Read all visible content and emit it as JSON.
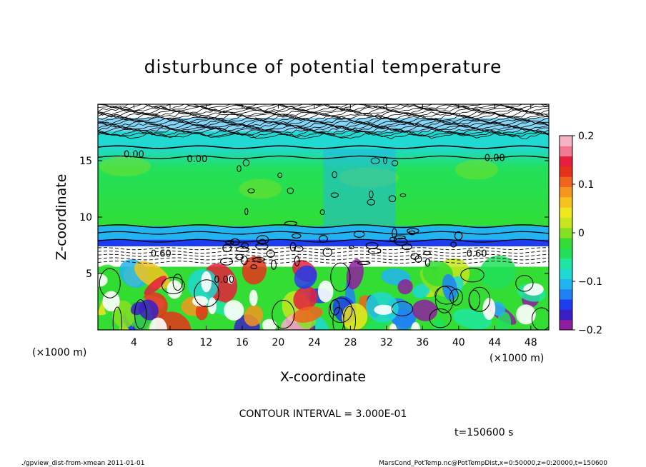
{
  "chart_data": {
    "type": "heatmap",
    "title": "disturbunce of potential temperature",
    "xlabel": "X-coordinate",
    "ylabel": "Z-coordinate",
    "x_unit": "(×1000 m)",
    "y_unit": "(×1000 m)",
    "xlim": [
      0,
      50
    ],
    "ylim": [
      0,
      20
    ],
    "x_ticks": [
      4,
      8,
      12,
      16,
      20,
      24,
      28,
      32,
      36,
      40,
      44,
      48
    ],
    "y_ticks": [
      5,
      10,
      15
    ],
    "colorbar": {
      "min": -0.2,
      "max": 0.2,
      "ticks": [
        "0.2",
        "0.1",
        "0",
        "−0.1",
        "−0.2"
      ],
      "tick_values": [
        0.2,
        0.1,
        0,
        -0.1,
        -0.2
      ],
      "colors": [
        "#8e1ea0",
        "#3b1fc4",
        "#1e3cf0",
        "#1e82f5",
        "#22b4f0",
        "#1fd9d2",
        "#1ee6a0",
        "#22e05a",
        "#33dd33",
        "#86e022",
        "#c8e61e",
        "#f0e61e",
        "#f5c31e",
        "#f5961e",
        "#f0641e",
        "#e63219",
        "#e61e3c",
        "#f07890",
        "#f5b4c3"
      ]
    },
    "contour_labels": [
      {
        "text": "0.00",
        "x": 4,
        "z": 15.6
      },
      {
        "text": "0.00",
        "x": 11,
        "z": 15.2
      },
      {
        "text": "0.00",
        "x": 44,
        "z": 15.3
      },
      {
        "text": "0.60",
        "x": 7,
        "z": 6.8
      },
      {
        "text": "0.60",
        "x": 42,
        "z": 6.8
      },
      {
        "text": "0.00",
        "x": 14,
        "z": 4.5
      }
    ],
    "contour_interval": "CONTOUR INTERVAL = 3.000E-01",
    "time_label": "t=150600 s"
  },
  "footer": {
    "left": "./gpview_dist-from-xmean  2011-01-01",
    "right": "MarsCond_PotTemp.nc@PotTempDist,x=0:50000,z=0:20000,t=150600"
  },
  "colors": {
    "frame": "#000000",
    "green": "#33dd33",
    "cyan": "#22b4f0",
    "blue": "#1e82f5"
  }
}
